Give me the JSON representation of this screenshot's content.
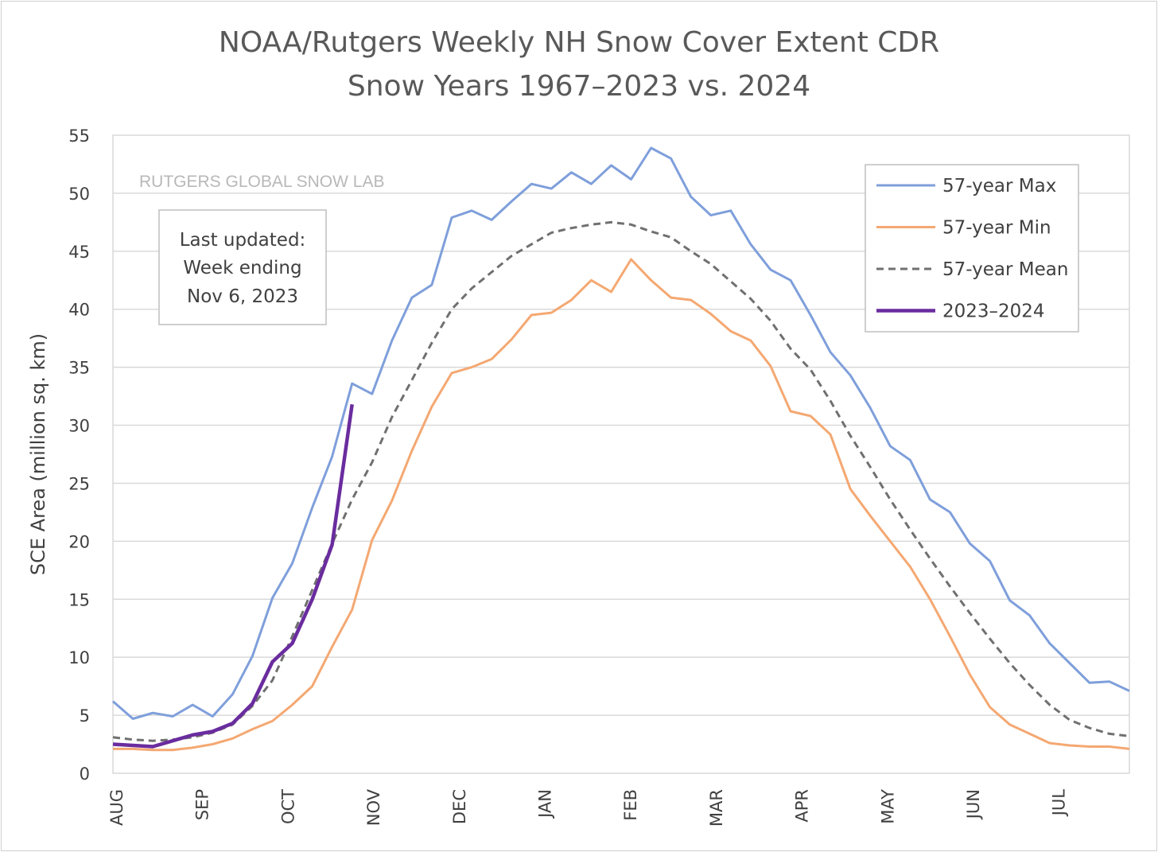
{
  "chart_data": {
    "type": "line",
    "title": [
      "NOAA/Rutgers Weekly NH Snow Cover Extent CDR",
      "Snow Years 1967–2023 vs. 2024"
    ],
    "xlabel": "",
    "ylabel": "SCE Area (million sq. km)",
    "ylim": [
      0,
      55
    ],
    "yticks": [
      0,
      5,
      10,
      15,
      20,
      25,
      30,
      35,
      40,
      45,
      50,
      55
    ],
    "x_unit": "week of snow year (52 weeks, starting August)",
    "month_labels": [
      "AUG",
      "SEP",
      "OCT",
      "NOV",
      "DEC",
      "JAN",
      "FEB",
      "MAR",
      "APR",
      "MAY",
      "JUN",
      "JUL"
    ],
    "grid": true,
    "legend_placement": "top-right",
    "watermark": "RUTGERS GLOBAL SNOW LAB",
    "annotation": [
      "Last updated:",
      "Week ending",
      "Nov 6, 2023"
    ],
    "series": [
      {
        "name": "57-year Max",
        "color": "#7F9FDB",
        "style": "solid",
        "values": [
          6.2,
          4.7,
          5.2,
          4.9,
          5.9,
          4.9,
          6.8,
          10.1,
          15.1,
          18.1,
          22.9,
          27.3,
          33.6,
          32.7,
          37.3,
          41.0,
          42.1,
          47.9,
          48.5,
          47.7,
          49.3,
          50.8,
          50.4,
          51.8,
          50.8,
          52.4,
          51.2,
          53.9,
          53.0,
          49.7,
          48.1,
          48.5,
          45.6,
          43.4,
          42.5,
          39.5,
          36.3,
          34.3,
          31.5,
          28.2,
          27.0,
          23.6,
          22.5,
          19.8,
          18.3,
          14.9,
          13.6,
          11.2,
          9.5,
          7.8,
          7.9,
          7.1
        ]
      },
      {
        "name": "57-year Min",
        "color": "#F4A872",
        "style": "solid",
        "values": [
          2.1,
          2.1,
          2.0,
          2.0,
          2.2,
          2.5,
          3.0,
          3.8,
          4.5,
          5.9,
          7.5,
          10.9,
          14.1,
          20.1,
          23.5,
          27.8,
          31.6,
          34.5,
          35.0,
          35.7,
          37.4,
          39.5,
          39.7,
          40.8,
          42.5,
          41.5,
          44.3,
          42.5,
          41.0,
          40.8,
          39.6,
          38.1,
          37.3,
          35.1,
          31.2,
          30.8,
          29.2,
          24.5,
          22.2,
          20.0,
          17.8,
          15.0,
          11.8,
          8.5,
          5.7,
          4.2,
          3.4,
          2.6,
          2.4,
          2.3,
          2.3,
          2.1
        ]
      },
      {
        "name": "57-year Mean",
        "color": "#707070",
        "style": "dashed",
        "values": [
          3.1,
          2.9,
          2.8,
          2.9,
          3.1,
          3.5,
          4.2,
          5.8,
          8.0,
          11.8,
          15.8,
          19.8,
          23.6,
          26.8,
          30.7,
          33.9,
          37.1,
          40.0,
          41.8,
          43.2,
          44.6,
          45.6,
          46.6,
          47.0,
          47.3,
          47.5,
          47.3,
          46.7,
          46.2,
          45.0,
          43.9,
          42.4,
          40.9,
          39.0,
          36.6,
          34.8,
          32.1,
          29.1,
          26.4,
          23.6,
          21.0,
          18.5,
          16.1,
          13.8,
          11.6,
          9.5,
          7.6,
          5.9,
          4.6,
          3.9,
          3.4,
          3.2
        ]
      },
      {
        "name": "2023–2024",
        "color": "#6A2C9E",
        "style": "solid-bold",
        "values": [
          2.5,
          2.4,
          2.3,
          2.8,
          3.3,
          3.6,
          4.3,
          6.0,
          9.6,
          11.2,
          15.0,
          19.7,
          31.8
        ]
      }
    ]
  }
}
